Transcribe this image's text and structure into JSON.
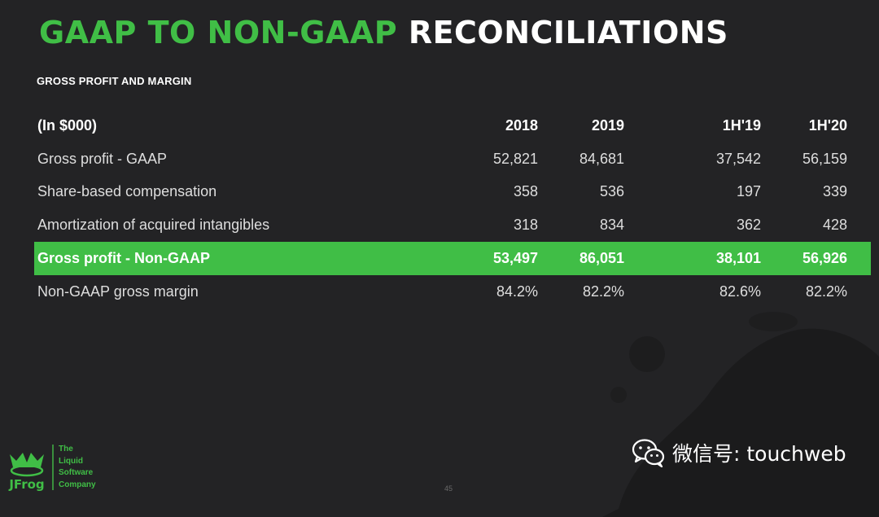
{
  "title": {
    "green_part": "GAAP TO NON-GAAP",
    "white_part": "RECONCILIATIONS"
  },
  "subtitle": "GROSS PROFIT AND MARGIN",
  "table": {
    "header": {
      "unit_label": "(In $000)",
      "columns": [
        "2018",
        "2019",
        "1H'19",
        "1H'20"
      ]
    },
    "rows": [
      {
        "label": "Gross profit - GAAP",
        "values": [
          "52,821",
          "84,681",
          "37,542",
          "56,159"
        ],
        "highlight": false
      },
      {
        "label": "Share-based compensation",
        "values": [
          "358",
          "536",
          "197",
          "339"
        ],
        "highlight": false
      },
      {
        "label": "Amortization of acquired intangibles",
        "values": [
          "318",
          "834",
          "362",
          "428"
        ],
        "highlight": false
      },
      {
        "label": "Gross profit - Non-GAAP",
        "values": [
          "53,497",
          "86,051",
          "38,101",
          "56,926"
        ],
        "highlight": true
      },
      {
        "label": "Non-GAAP gross margin",
        "values": [
          "84.2%",
          "82.2%",
          "82.6%",
          "82.2%"
        ],
        "highlight": false
      }
    ]
  },
  "footer": {
    "logo_text": "JFrog",
    "tagline": [
      "The",
      "Liquid",
      "Software",
      "Company"
    ],
    "page_number": "45"
  },
  "watermark": {
    "icon": "wechat-icon",
    "text": "微信号: touchweb"
  },
  "colors": {
    "background": "#232325",
    "accent_green": "#40be46",
    "text": "#dedede"
  }
}
